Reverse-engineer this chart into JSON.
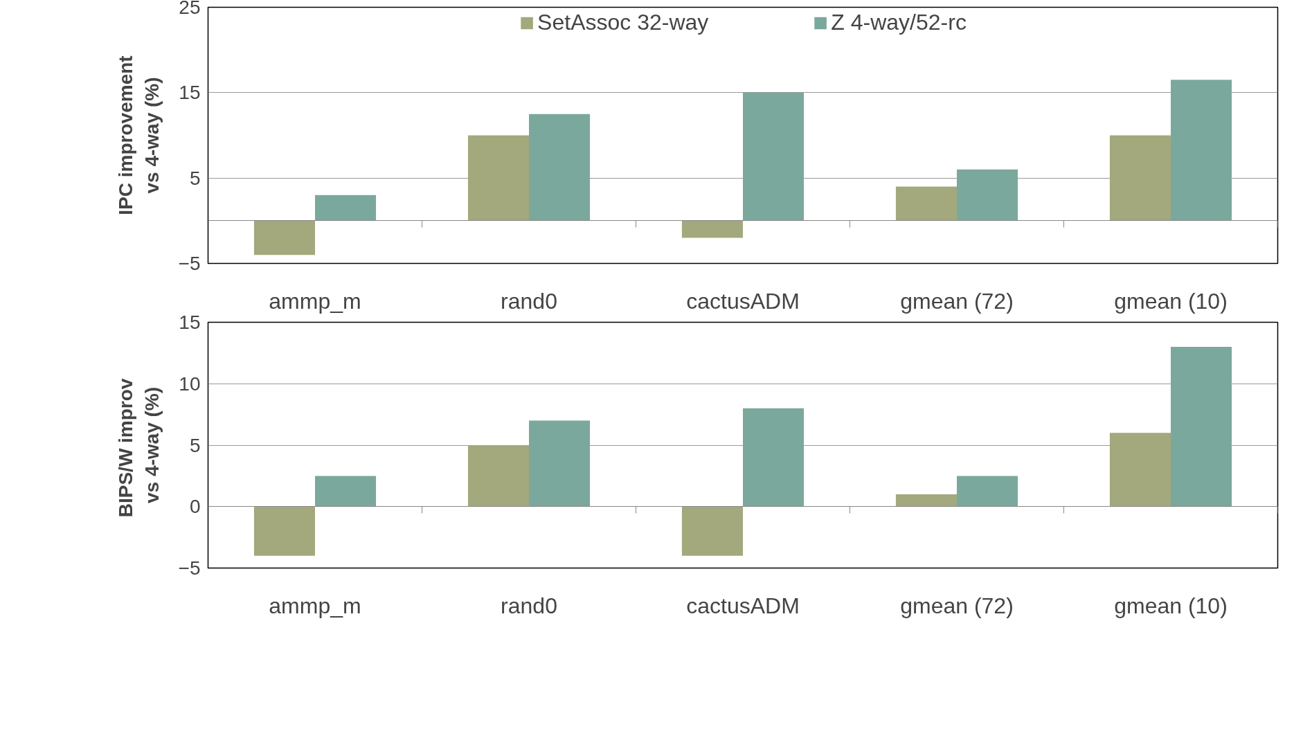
{
  "chart_data": [
    {
      "type": "bar",
      "ylabel": "IPC improvement\nvs 4-way (%)",
      "categories": [
        "ammp_m",
        "rand0",
        "cactusADM",
        "gmean (72)",
        "gmean (10)"
      ],
      "series": [
        {
          "name": "SetAssoc 32-way",
          "color": "#a3a87d",
          "values": [
            -4,
            10,
            -2,
            4,
            10
          ]
        },
        {
          "name": "Z 4-way/52-rc",
          "color": "#7ba89c",
          "values": [
            3,
            12.5,
            15,
            6,
            16.5
          ]
        }
      ],
      "ylim": [
        -5,
        25
      ],
      "yticks": [
        -5,
        5,
        15,
        25
      ],
      "grid": "y",
      "legend": "top"
    },
    {
      "type": "bar",
      "ylabel": "BIPS/W  improv\nvs 4-way (%)",
      "categories": [
        "ammp_m",
        "rand0",
        "cactusADM",
        "gmean (72)",
        "gmean (10)"
      ],
      "series": [
        {
          "color": "#a3a87d",
          "values": [
            -4,
            5,
            -4,
            1,
            6
          ]
        },
        {
          "color": "#7ba89c",
          "values": [
            2.5,
            7,
            8,
            2.5,
            13
          ]
        }
      ],
      "ylim": [
        -5,
        15
      ],
      "yticks": [
        -5,
        0,
        5,
        10,
        15
      ],
      "grid": "y"
    }
  ]
}
